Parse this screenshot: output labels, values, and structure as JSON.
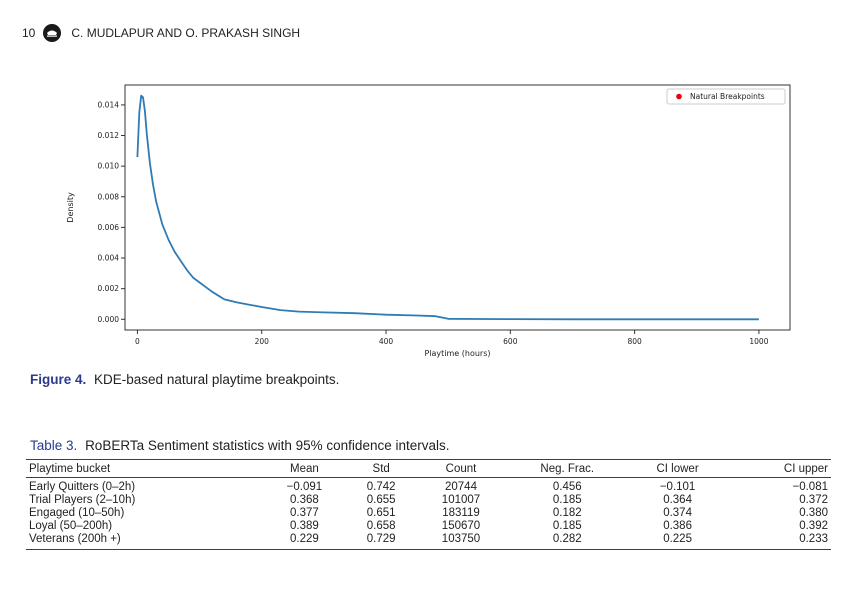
{
  "header": {
    "page_number": "10",
    "authors": "C. MUDLAPUR AND O. PRAKASH SINGH",
    "logo_icon": "journal-logo-icon"
  },
  "figure": {
    "label": "Figure 4.",
    "caption": "KDE-based natural playtime breakpoints."
  },
  "chart_data": {
    "type": "line",
    "title": "",
    "xlabel": "Playtime (hours)",
    "ylabel": "Density",
    "xlim": [
      -20,
      1050
    ],
    "ylim": [
      -0.0007,
      0.0153
    ],
    "xticks": [
      "0",
      "200",
      "400",
      "600",
      "800",
      "1000"
    ],
    "yticks": [
      "0.000",
      "0.002",
      "0.004",
      "0.006",
      "0.008",
      "0.010",
      "0.012",
      "0.014"
    ],
    "grid": false,
    "legend_position": "top-right",
    "legend": [
      "Natural Breakpoints"
    ],
    "series": [
      {
        "name": "Natural Breakpoints",
        "color": "#2f7bb4",
        "marker_color": "#e8000b",
        "x": [
          0,
          3,
          6,
          9,
          12,
          15,
          20,
          25,
          30,
          40,
          50,
          60,
          70,
          80,
          90,
          100,
          120,
          140,
          160,
          180,
          200,
          230,
          260,
          300,
          350,
          400,
          450,
          480,
          500,
          550,
          600,
          700,
          800,
          900,
          1000
        ],
        "y": [
          0.0106,
          0.0135,
          0.0146,
          0.0145,
          0.0136,
          0.0121,
          0.0102,
          0.0088,
          0.0077,
          0.0062,
          0.0052,
          0.0044,
          0.0038,
          0.0032,
          0.0027,
          0.0024,
          0.0018,
          0.0013,
          0.0011,
          0.00095,
          0.0008,
          0.0006,
          0.0005,
          0.00045,
          0.0004,
          0.0003,
          0.00025,
          0.0002,
          3e-05,
          2e-05,
          1e-05,
          0.0,
          0.0,
          0.0,
          0.0
        ]
      }
    ]
  },
  "table": {
    "label": "Table 3.",
    "caption": "RoBERTa Sentiment statistics with 95% confidence intervals.",
    "headers": [
      "Playtime bucket",
      "Mean",
      "Std",
      "Count",
      "Neg. Frac.",
      "CI lower",
      "CI upper"
    ],
    "rows": [
      [
        "Early Quitters (0–2h)",
        "−0.091",
        "0.742",
        "20744",
        "0.456",
        "−0.101",
        "−0.081"
      ],
      [
        "Trial Players (2–10h)",
        "0.368",
        "0.655",
        "101007",
        "0.185",
        "0.364",
        "0.372"
      ],
      [
        "Engaged (10–50h)",
        "0.377",
        "0.651",
        "183119",
        "0.182",
        "0.374",
        "0.380"
      ],
      [
        "Loyal (50–200h)",
        "0.389",
        "0.658",
        "150670",
        "0.185",
        "0.386",
        "0.392"
      ],
      [
        "Veterans (200h +)",
        "0.229",
        "0.729",
        "103750",
        "0.282",
        "0.225",
        "0.233"
      ]
    ]
  }
}
